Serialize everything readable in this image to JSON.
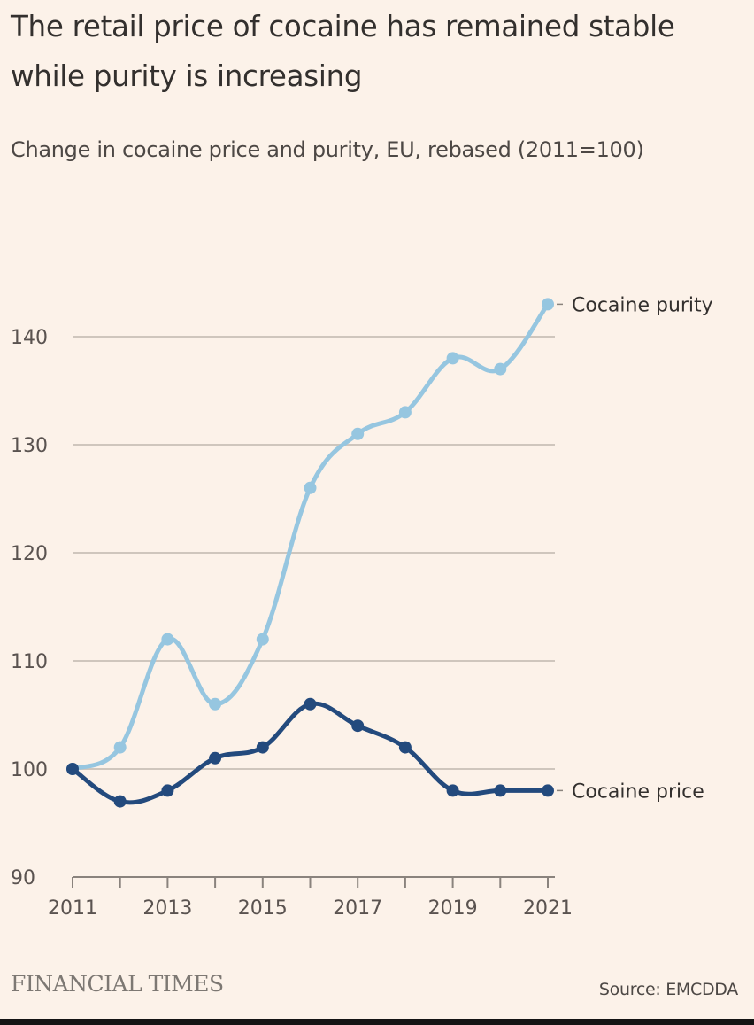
{
  "header": {
    "title": "The retail price of cocaine has remained stable while purity is increasing",
    "subtitle": "Change in cocaine price and purity, EU, rebased (2011=100)"
  },
  "footer": {
    "brand": "FINANCIAL TIMES",
    "source": "Source: EMCDDA"
  },
  "chart_data": {
    "type": "line",
    "title": "The retail price of cocaine has remained stable while purity is increasing",
    "subtitle": "Change in cocaine price and purity, EU, rebased (2011=100)",
    "xlabel": "",
    "ylabel": "",
    "x": [
      2011,
      2012,
      2013,
      2014,
      2015,
      2016,
      2017,
      2018,
      2019,
      2020,
      2021
    ],
    "xticks": [
      2011,
      2012,
      2013,
      2014,
      2015,
      2016,
      2017,
      2018,
      2019,
      2020,
      2021
    ],
    "xtick_labels": [
      "2011",
      "",
      "2013",
      "",
      "2015",
      "",
      "2017",
      "",
      "2019",
      "",
      "2021"
    ],
    "ylim": [
      90,
      145
    ],
    "yticks": [
      90,
      100,
      110,
      120,
      130,
      140
    ],
    "ytick_labels": [
      "90",
      "100",
      "110",
      "120",
      "130",
      "140"
    ],
    "grid": true,
    "legend": "direct labels at line ends (right)",
    "series": [
      {
        "name": "Cocaine purity",
        "color": "#96c6e0",
        "values": [
          100,
          102,
          112,
          106,
          112,
          126,
          131,
          133,
          138,
          137,
          143
        ]
      },
      {
        "name": "Cocaine price",
        "color": "#234a7d",
        "values": [
          100,
          97,
          98,
          101,
          102,
          106,
          104,
          102,
          98,
          98,
          98
        ]
      }
    ],
    "source": "Source: EMCDDA"
  }
}
